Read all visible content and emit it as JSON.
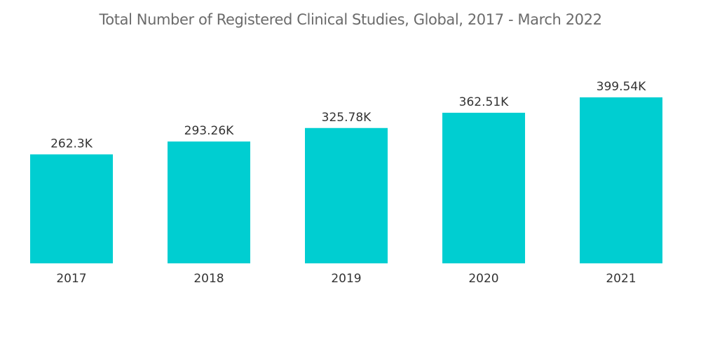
{
  "chart_data": {
    "type": "bar",
    "title": "Total Number of Registered Clinical Studies, Global, 2017 - March 2022",
    "categories": [
      "2017",
      "2018",
      "2019",
      "2020",
      "2021"
    ],
    "values": [
      262.3,
      293.26,
      325.78,
      362.51,
      399.54
    ],
    "value_labels": [
      "262.3K",
      "293.26K",
      "325.78K",
      "362.51K",
      "399.54K"
    ],
    "xlabel": "",
    "ylabel": "",
    "ylim": [
      0,
      399.54
    ],
    "grid": false,
    "bar_color": "#00CED1"
  }
}
